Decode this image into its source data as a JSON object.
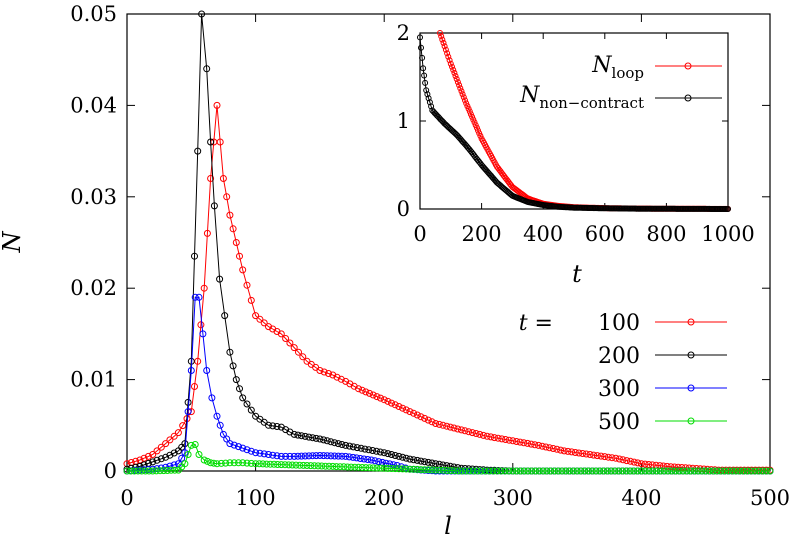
{
  "chart_data": [
    {
      "type": "scatter",
      "xlabel": "l",
      "ylabel": "N",
      "xlim": [
        0,
        500
      ],
      "ylim": [
        0,
        0.05
      ],
      "xticks": [
        "0",
        "100",
        "200",
        "300",
        "400",
        "500"
      ],
      "yticks": [
        "0",
        "0.01",
        "0.02",
        "0.03",
        "0.04",
        "0.05"
      ],
      "legend_title": "t =",
      "legend_position": "right-middle",
      "marker": "open-circle-with-line",
      "series": [
        {
          "name": "100",
          "color": "#ff0000",
          "points": [
            [
              0,
              0.0008
            ],
            [
              10,
              0.0012
            ],
            [
              20,
              0.0018
            ],
            [
              30,
              0.003
            ],
            [
              40,
              0.0042
            ],
            [
              50,
              0.0065
            ],
            [
              55,
              0.012
            ],
            [
              60,
              0.02
            ],
            [
              65,
              0.032
            ],
            [
              70,
              0.04
            ],
            [
              75,
              0.032
            ],
            [
              80,
              0.028
            ],
            [
              85,
              0.025
            ],
            [
              90,
              0.022
            ],
            [
              100,
              0.017
            ],
            [
              110,
              0.0158
            ],
            [
              120,
              0.015
            ],
            [
              130,
              0.0135
            ],
            [
              140,
              0.012
            ],
            [
              150,
              0.011
            ],
            [
              160,
              0.0105
            ],
            [
              170,
              0.0098
            ],
            [
              180,
              0.009
            ],
            [
              200,
              0.0078
            ],
            [
              220,
              0.0065
            ],
            [
              240,
              0.0052
            ],
            [
              260,
              0.0045
            ],
            [
              280,
              0.0038
            ],
            [
              300,
              0.0033
            ],
            [
              320,
              0.0028
            ],
            [
              340,
              0.0022
            ],
            [
              360,
              0.0018
            ],
            [
              380,
              0.0014
            ],
            [
              400,
              0.0008
            ],
            [
              420,
              0.0005
            ],
            [
              440,
              0.0003
            ],
            [
              460,
              0.0001
            ],
            [
              480,
              0.0001
            ],
            [
              500,
              0.0001
            ]
          ]
        },
        {
          "name": "200",
          "color": "#000000",
          "points": [
            [
              0,
              0.0002
            ],
            [
              10,
              0.0005
            ],
            [
              20,
              0.001
            ],
            [
              30,
              0.0015
            ],
            [
              40,
              0.0022
            ],
            [
              45,
              0.003
            ],
            [
              50,
              0.012
            ],
            [
              55,
              0.035
            ],
            [
              58,
              0.05
            ],
            [
              62,
              0.044
            ],
            [
              65,
              0.036
            ],
            [
              68,
              0.029
            ],
            [
              72,
              0.021
            ],
            [
              76,
              0.017
            ],
            [
              80,
              0.013
            ],
            [
              85,
              0.01
            ],
            [
              90,
              0.008
            ],
            [
              100,
              0.006
            ],
            [
              110,
              0.005
            ],
            [
              120,
              0.0048
            ],
            [
              130,
              0.004
            ],
            [
              150,
              0.0035
            ],
            [
              170,
              0.0028
            ],
            [
              200,
              0.002
            ],
            [
              220,
              0.0013
            ],
            [
              240,
              0.0008
            ],
            [
              260,
              0.0003
            ],
            [
              280,
              0.0001
            ],
            [
              300,
              0.0
            ],
            [
              350,
              0.0
            ],
            [
              400,
              0.0
            ],
            [
              450,
              0.0
            ],
            [
              500,
              0.0
            ]
          ]
        },
        {
          "name": "300",
          "color": "#0000ff",
          "points": [
            [
              0,
              0.0
            ],
            [
              10,
              0.0001
            ],
            [
              20,
              0.0002
            ],
            [
              30,
              0.0004
            ],
            [
              40,
              0.0008
            ],
            [
              45,
              0.002
            ],
            [
              50,
              0.011
            ],
            [
              53,
              0.019
            ],
            [
              56,
              0.019
            ],
            [
              59,
              0.015
            ],
            [
              62,
              0.011
            ],
            [
              66,
              0.008
            ],
            [
              70,
              0.006
            ],
            [
              75,
              0.004
            ],
            [
              80,
              0.003
            ],
            [
              90,
              0.0025
            ],
            [
              100,
              0.002
            ],
            [
              110,
              0.0018
            ],
            [
              120,
              0.0016
            ],
            [
              130,
              0.0016
            ],
            [
              150,
              0.0017
            ],
            [
              170,
              0.0016
            ],
            [
              190,
              0.0012
            ],
            [
              210,
              0.0006
            ],
            [
              220,
              0.0002
            ],
            [
              240,
              0.0
            ],
            [
              300,
              0.0
            ],
            [
              350,
              0.0
            ],
            [
              400,
              0.0
            ],
            [
              450,
              0.0
            ],
            [
              500,
              0.0
            ]
          ]
        },
        {
          "name": "500",
          "color": "#00dd00",
          "points": [
            [
              0,
              0.0
            ],
            [
              20,
              0.0
            ],
            [
              40,
              0.0001
            ],
            [
              45,
              0.0008
            ],
            [
              50,
              0.0028
            ],
            [
              53,
              0.0029
            ],
            [
              56,
              0.0018
            ],
            [
              60,
              0.0012
            ],
            [
              65,
              0.0009
            ],
            [
              70,
              0.0008
            ],
            [
              80,
              0.0009
            ],
            [
              90,
              0.0009
            ],
            [
              100,
              0.0008
            ],
            [
              120,
              0.0007
            ],
            [
              140,
              0.0006
            ],
            [
              160,
              0.0005
            ],
            [
              180,
              0.0004
            ],
            [
              200,
              0.0003
            ],
            [
              220,
              0.0002
            ],
            [
              240,
              0.0001
            ],
            [
              260,
              0.0
            ],
            [
              300,
              0.0
            ],
            [
              350,
              0.0
            ],
            [
              400,
              0.0
            ],
            [
              450,
              0.0
            ],
            [
              500,
              0.0
            ]
          ]
        }
      ]
    },
    {
      "type": "scatter",
      "title": "",
      "xlabel": "t",
      "ylabel": "",
      "xlim": [
        0,
        1000
      ],
      "ylim": [
        0,
        2
      ],
      "xticks": [
        "0",
        "200",
        "400",
        "600",
        "800",
        "1000"
      ],
      "yticks": [
        "0",
        "1",
        "2"
      ],
      "legend_position": "top-right",
      "series": [
        {
          "name": "N_loop",
          "color": "#ff0000",
          "points": [
            [
              65,
              2.0
            ],
            [
              80,
              1.85
            ],
            [
              100,
              1.65
            ],
            [
              150,
              1.2
            ],
            [
              200,
              0.8
            ],
            [
              250,
              0.48
            ],
            [
              300,
              0.25
            ],
            [
              350,
              0.12
            ],
            [
              400,
              0.06
            ],
            [
              450,
              0.035
            ],
            [
              500,
              0.02
            ],
            [
              600,
              0.01
            ],
            [
              700,
              0.005
            ],
            [
              800,
              0.003
            ],
            [
              900,
              0.002
            ],
            [
              1000,
              0.001
            ]
          ]
        },
        {
          "name": "N_non-contract",
          "color": "#000000",
          "points": [
            [
              0,
              1.95
            ],
            [
              10,
              1.6
            ],
            [
              20,
              1.35
            ],
            [
              40,
              1.12
            ],
            [
              80,
              0.97
            ],
            [
              120,
              0.84
            ],
            [
              160,
              0.68
            ],
            [
              200,
              0.5
            ],
            [
              250,
              0.3
            ],
            [
              300,
              0.15
            ],
            [
              350,
              0.08
            ],
            [
              400,
              0.045
            ],
            [
              450,
              0.025
            ],
            [
              500,
              0.015
            ],
            [
              600,
              0.008
            ],
            [
              700,
              0.004
            ],
            [
              800,
              0.002
            ],
            [
              900,
              0.001
            ],
            [
              1000,
              0.0
            ]
          ]
        }
      ]
    }
  ],
  "inset_legend": {
    "loop_main": "N",
    "loop_sub": "loop",
    "noncontract_main": "N",
    "noncontract_sub": "non−contract"
  }
}
